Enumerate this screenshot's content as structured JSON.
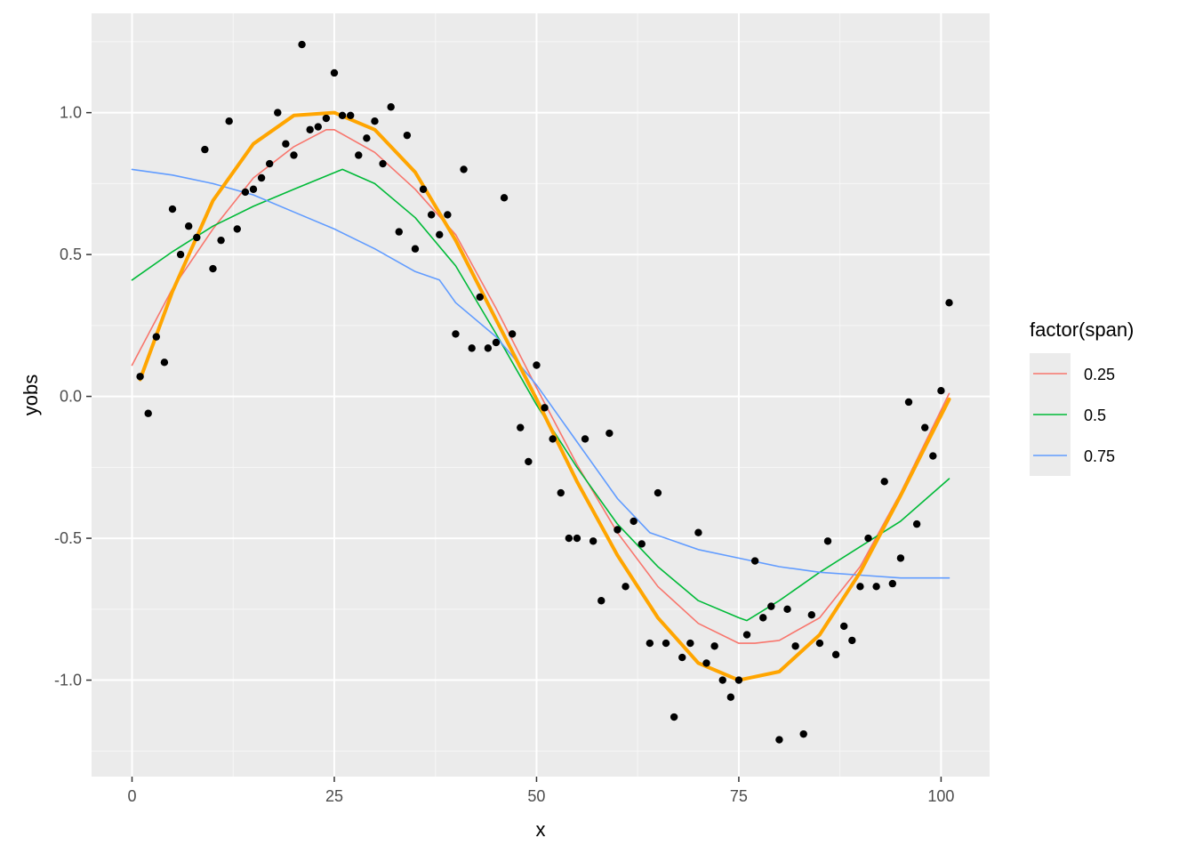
{
  "chart_data": {
    "type": "scatter",
    "title": "",
    "xlabel": "x",
    "ylabel": "yobs",
    "xlim": [
      -5,
      106
    ],
    "ylim": [
      -1.34,
      1.35
    ],
    "x_ticks": [
      0,
      25,
      50,
      75,
      100
    ],
    "x_tick_labels": [
      "0",
      "25",
      "50",
      "75",
      "100"
    ],
    "y_ticks": [
      -1.0,
      -0.5,
      0.0,
      0.5,
      1.0
    ],
    "y_tick_labels": [
      "-1.0",
      "-0.5",
      "0.0",
      "0.5",
      "1.0"
    ],
    "grid": true,
    "panel_background": "#ebebeb",
    "legend": {
      "title": "factor(span)",
      "position": "right",
      "entries": [
        {
          "label": "0.25",
          "color": "#F8766D"
        },
        {
          "label": "0.5",
          "color": "#00BA38"
        },
        {
          "label": "0.75",
          "color": "#619CFF"
        }
      ]
    },
    "points": {
      "color": "#000000",
      "x": [
        1,
        2,
        3,
        4,
        5,
        6,
        7,
        8,
        9,
        10,
        11,
        12,
        13,
        14,
        15,
        16,
        17,
        18,
        19,
        20,
        21,
        22,
        23,
        24,
        25,
        26,
        27,
        28,
        29,
        30,
        31,
        32,
        33,
        34,
        35,
        36,
        37,
        38,
        39,
        40,
        41,
        42,
        43,
        44,
        45,
        46,
        47,
        48,
        49,
        50,
        51,
        52,
        53,
        54,
        55,
        56,
        57,
        58,
        59,
        60,
        61,
        62,
        63,
        64,
        65,
        66,
        67,
        68,
        69,
        70,
        71,
        72,
        73,
        74,
        75,
        76,
        77,
        78,
        79,
        80,
        81,
        82,
        83,
        84,
        85,
        86,
        87,
        88,
        89,
        90,
        91,
        92,
        93,
        94,
        95,
        96,
        97,
        98,
        99,
        100,
        101
      ],
      "y": [
        0.07,
        -0.06,
        0.21,
        0.12,
        0.66,
        0.5,
        0.6,
        0.56,
        0.87,
        0.45,
        0.55,
        0.97,
        0.59,
        0.72,
        0.73,
        0.77,
        0.82,
        1.0,
        0.89,
        0.85,
        1.24,
        0.94,
        0.95,
        0.98,
        1.14,
        0.99,
        0.99,
        0.85,
        0.91,
        0.97,
        0.82,
        1.02,
        0.58,
        0.92,
        0.52,
        0.73,
        0.64,
        0.57,
        0.64,
        0.22,
        0.8,
        0.17,
        0.35,
        0.17,
        0.19,
        0.7,
        0.22,
        -0.11,
        -0.23,
        0.11,
        -0.04,
        -0.15,
        -0.34,
        -0.5,
        -0.5,
        -0.15,
        -0.51,
        -0.72,
        -0.13,
        -0.47,
        -0.67,
        -0.44,
        -0.52,
        -0.87,
        -0.34,
        -0.87,
        -1.13,
        -0.92,
        -0.87,
        -0.48,
        -0.94,
        -0.88,
        -1.0,
        -1.06,
        -1.0,
        -0.84,
        -0.58,
        -0.78,
        -0.74,
        -1.21,
        -0.75,
        -0.88,
        -1.19,
        -0.77,
        -0.87,
        -0.51,
        -0.91,
        -0.81,
        -0.86,
        -0.67,
        -0.5,
        -0.67,
        -0.3,
        -0.66,
        -0.57,
        -0.02,
        -0.45,
        -0.11,
        -0.21,
        0.02,
        0.33
      ]
    },
    "series": [
      {
        "name": "0.25",
        "color": "#F8766D",
        "x": [
          0,
          5,
          10,
          15,
          20,
          24,
          25,
          30,
          35,
          40,
          45,
          50,
          55,
          60,
          65,
          70,
          75,
          77,
          80,
          85,
          90,
          95,
          101
        ],
        "y": [
          0.11,
          0.38,
          0.59,
          0.77,
          0.88,
          0.94,
          0.94,
          0.86,
          0.73,
          0.57,
          0.31,
          0.03,
          -0.24,
          -0.48,
          -0.67,
          -0.8,
          -0.87,
          -0.87,
          -0.86,
          -0.78,
          -0.6,
          -0.34,
          0.01
        ]
      },
      {
        "name": "0.5",
        "color": "#00BA38",
        "x": [
          0,
          5,
          10,
          15,
          20,
          26,
          30,
          35,
          40,
          45,
          50,
          55,
          60,
          65,
          70,
          75,
          76,
          80,
          85,
          90,
          95,
          101
        ],
        "y": [
          0.41,
          0.51,
          0.6,
          0.67,
          0.73,
          0.8,
          0.75,
          0.63,
          0.46,
          0.22,
          -0.03,
          -0.25,
          -0.45,
          -0.6,
          -0.72,
          -0.78,
          -0.79,
          -0.72,
          -0.62,
          -0.53,
          -0.44,
          -0.29
        ]
      },
      {
        "name": "0.75",
        "color": "#619CFF",
        "x": [
          0,
          5,
          10,
          15,
          20,
          25,
          30,
          35,
          38,
          40,
          45,
          50,
          55,
          60,
          64,
          70,
          75,
          80,
          85,
          90,
          95,
          101
        ],
        "y": [
          0.8,
          0.78,
          0.75,
          0.71,
          0.65,
          0.59,
          0.52,
          0.44,
          0.41,
          0.33,
          0.21,
          0.04,
          -0.16,
          -0.36,
          -0.48,
          -0.54,
          -0.57,
          -0.6,
          -0.62,
          -0.63,
          -0.64,
          -0.64
        ]
      },
      {
        "color": "#FFA500",
        "x": [
          1,
          5,
          10,
          15,
          20,
          25,
          30,
          35,
          40,
          45,
          50,
          55,
          60,
          65,
          70,
          75,
          80,
          85,
          90,
          95,
          101
        ],
        "y": [
          0.06,
          0.37,
          0.69,
          0.89,
          0.99,
          1.0,
          0.94,
          0.79,
          0.55,
          0.27,
          -0.01,
          -0.3,
          -0.56,
          -0.78,
          -0.94,
          -1.0,
          -0.97,
          -0.84,
          -0.62,
          -0.35,
          -0.01
        ]
      }
    ]
  }
}
